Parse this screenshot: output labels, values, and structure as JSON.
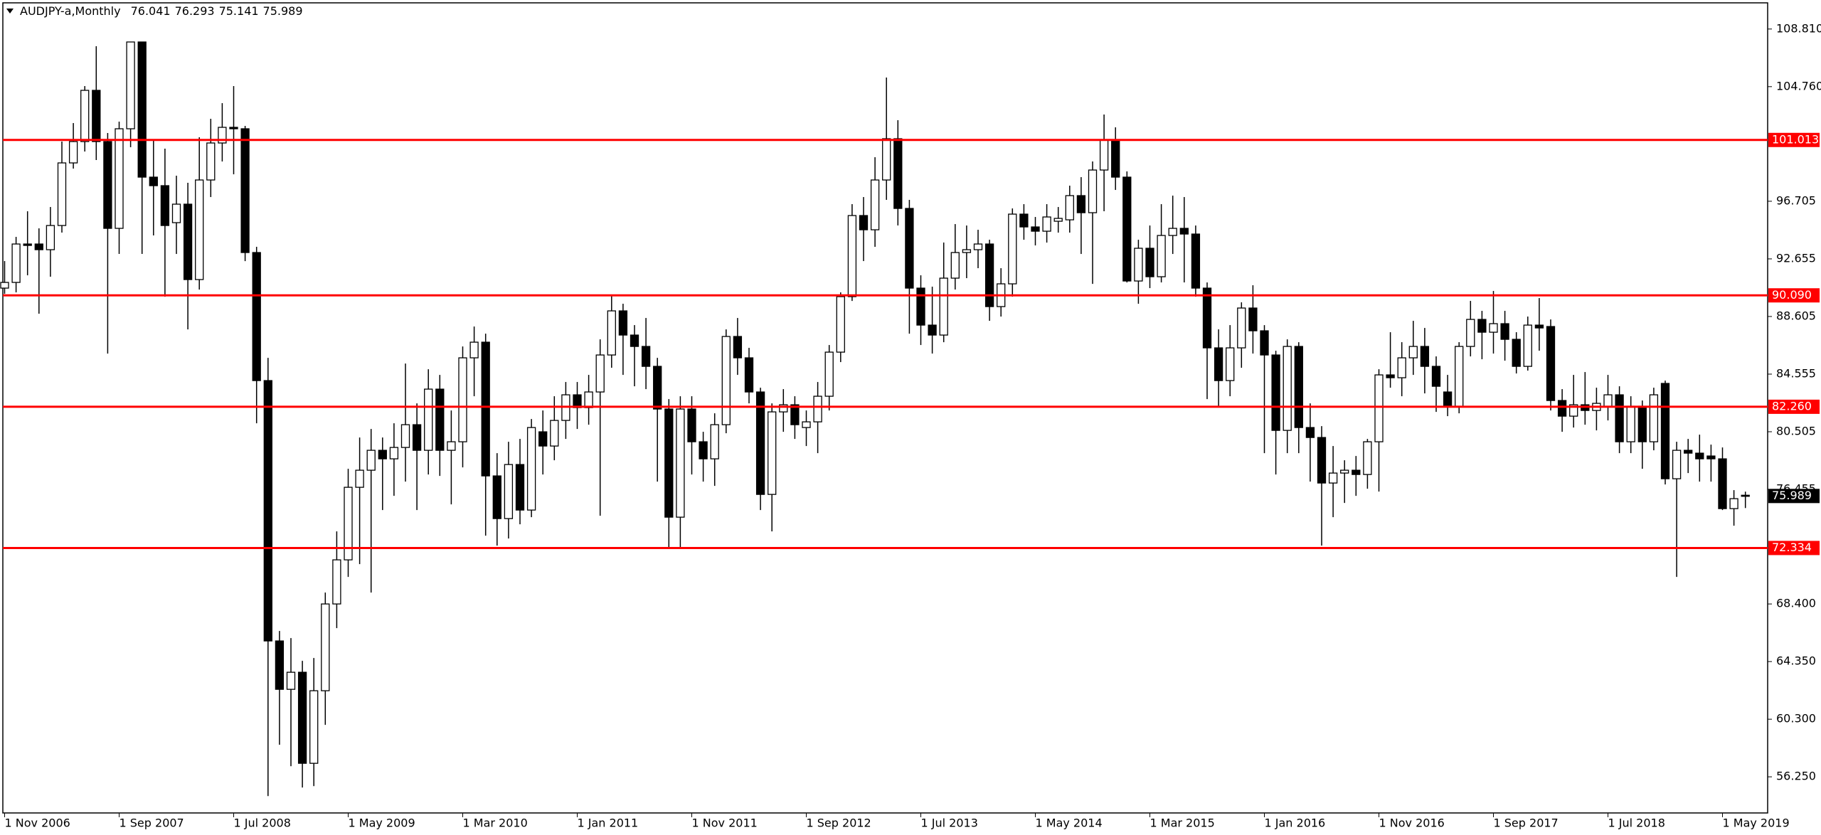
{
  "chart_data": {
    "type": "candlestick",
    "title": "AUDJPY-a,Monthly",
    "categories": [
      "1 Nov 2006",
      null,
      null,
      null,
      null,
      null,
      null,
      null,
      null,
      null,
      "1 Sep 2007",
      null,
      null,
      null,
      null,
      null,
      null,
      null,
      null,
      null,
      "1 Jul 2008",
      null,
      null,
      null,
      null,
      null,
      null,
      null,
      null,
      null,
      "1 May 2009",
      null,
      null,
      null,
      null,
      null,
      null,
      null,
      null,
      null,
      "1 Mar 2010",
      null,
      null,
      null,
      null,
      null,
      null,
      null,
      null,
      null,
      "1 Jan 2011",
      null,
      null,
      null,
      null,
      null,
      null,
      null,
      null,
      null,
      "1 Nov 2011",
      null,
      null,
      null,
      null,
      null,
      null,
      null,
      null,
      null,
      "1 Sep 2012",
      null,
      null,
      null,
      null,
      null,
      null,
      null,
      null,
      null,
      "1 Jul 2013",
      null,
      null,
      null,
      null,
      null,
      null,
      null,
      null,
      null,
      "1 May 2014",
      null,
      null,
      null,
      null,
      null,
      null,
      null,
      null,
      null,
      "1 Mar 2015",
      null,
      null,
      null,
      null,
      null,
      null,
      null,
      null,
      null,
      "1 Jan 2016",
      null,
      null,
      null,
      null,
      null,
      null,
      null,
      null,
      null,
      "1 Nov 2016",
      null,
      null,
      null,
      null,
      null,
      null,
      null,
      null,
      null,
      "1 Sep 2017",
      null,
      null,
      null,
      null,
      null,
      null,
      null,
      null,
      null,
      "1 Jul 2018",
      null,
      null,
      null,
      null,
      null,
      null,
      null,
      null,
      null,
      "1 May 2019",
      null,
      null
    ],
    "open": [
      90.6,
      91.0,
      93.7,
      93.7,
      93.3,
      95.0,
      99.4,
      100.9,
      104.5,
      100.9,
      94.8,
      101.8,
      107.9,
      98.4,
      97.8,
      95.2,
      96.5,
      91.2,
      98.2,
      100.8,
      101.9,
      101.8,
      93.1,
      84.1,
      65.8,
      62.4,
      63.6,
      57.2,
      62.3,
      68.4,
      71.5,
      76.6,
      77.8,
      79.2,
      78.6,
      79.4,
      81.0,
      79.2,
      83.5,
      79.2,
      79.8,
      85.7,
      86.8,
      77.4,
      74.4,
      78.2,
      75.0,
      80.5,
      79.5,
      81.3,
      83.1,
      82.2,
      83.3,
      85.9,
      89.0,
      87.3,
      86.5,
      85.1,
      82.1,
      74.5,
      82.1,
      79.8,
      78.6,
      81.0,
      87.2,
      85.7,
      83.3,
      76.1,
      81.9,
      82.4,
      80.8,
      81.2,
      83.0,
      86.1,
      90.0,
      95.7,
      94.7,
      98.2,
      101.1,
      96.2,
      90.6,
      88.0,
      87.3,
      91.3,
      93.1,
      93.3,
      93.7,
      89.3,
      90.9,
      95.8,
      94.9,
      94.6,
      95.3,
      95.4,
      97.1,
      95.9,
      98.9,
      101.0,
      98.4,
      91.1,
      93.4,
      91.4,
      94.3,
      94.8,
      94.4,
      90.6,
      86.4,
      84.1,
      86.4,
      89.2,
      87.6,
      85.9,
      80.6,
      86.5,
      80.8,
      80.1,
      76.9,
      77.6,
      77.8,
      77.5,
      79.8,
      84.5,
      84.3,
      85.7,
      86.5,
      85.1,
      83.3,
      82.3,
      86.5,
      88.4,
      87.5,
      88.1,
      87.0,
      85.1,
      88.0,
      87.9,
      82.7,
      81.6,
      82.4,
      82.0,
      82.3,
      83.1,
      79.8,
      82.3,
      79.8,
      83.9,
      77.2,
      79.2,
      79.0,
      78.8,
      78.6,
      75.1,
      76.041
    ],
    "high": [
      92.5,
      94.2,
      96.0,
      94.8,
      96.3,
      100.9,
      102.2,
      104.8,
      107.6,
      101.5,
      102.3,
      107.9,
      107.9,
      101.0,
      100.4,
      98.5,
      98.0,
      101.2,
      102.5,
      103.6,
      104.8,
      102.0,
      93.5,
      85.7,
      66.5,
      66.0,
      64.4,
      64.6,
      69.2,
      73.5,
      77.9,
      80.1,
      80.7,
      80.1,
      81.1,
      85.3,
      82.5,
      84.9,
      84.5,
      82.0,
      86.5,
      87.9,
      87.4,
      79.0,
      79.8,
      80.0,
      81.4,
      82.0,
      83.0,
      84.0,
      84.0,
      84.5,
      87.0,
      90.1,
      89.5,
      88.0,
      88.5,
      85.7,
      82.8,
      83.0,
      83.0,
      80.5,
      81.8,
      87.7,
      88.5,
      86.4,
      83.6,
      82.5,
      83.5,
      83.0,
      82.0,
      84.0,
      86.6,
      90.3,
      96.5,
      97.0,
      99.8,
      105.4,
      102.4,
      96.8,
      91.5,
      90.7,
      93.8,
      95.1,
      95.0,
      94.7,
      94.0,
      92.0,
      96.2,
      96.5,
      95.6,
      96.5,
      96.3,
      97.8,
      98.4,
      99.5,
      102.8,
      101.9,
      98.8,
      94.0,
      95.0,
      96.5,
      97.1,
      97.0,
      95.0,
      91.0,
      87.7,
      88.0,
      89.6,
      90.8,
      88.0,
      86.2,
      87.0,
      86.8,
      82.5,
      80.9,
      79.5,
      78.5,
      78.8,
      80.0,
      84.9,
      87.5,
      86.8,
      88.3,
      87.8,
      85.8,
      84.5,
      86.8,
      89.7,
      89.0,
      90.4,
      89.0,
      87.5,
      88.6,
      89.9,
      88.4,
      83.5,
      84.5,
      84.7,
      83.6,
      84.5,
      83.7,
      83.0,
      82.7,
      83.6,
      84.1,
      79.8,
      80.0,
      80.3,
      79.6,
      79.4,
      76.4,
      76.293
    ],
    "low": [
      90.2,
      90.3,
      91.5,
      88.8,
      91.4,
      94.5,
      99.0,
      100.2,
      99.6,
      86.0,
      93.0,
      100.5,
      93.0,
      94.3,
      90.0,
      93.0,
      87.7,
      90.5,
      97.0,
      99.5,
      98.6,
      92.5,
      81.1,
      54.9,
      58.5,
      57.0,
      55.5,
      55.6,
      59.9,
      66.7,
      70.3,
      71.2,
      69.2,
      75.0,
      76.0,
      77.0,
      75.0,
      77.5,
      77.4,
      75.4,
      78.0,
      83.0,
      73.2,
      72.5,
      73.0,
      74.0,
      74.5,
      77.5,
      78.5,
      80.0,
      80.7,
      81.0,
      74.6,
      85.0,
      84.5,
      83.7,
      83.5,
      77.0,
      72.4,
      72.3,
      77.5,
      77.0,
      76.7,
      80.4,
      84.5,
      82.5,
      75.0,
      73.5,
      80.5,
      80.0,
      79.5,
      79.0,
      82.0,
      85.4,
      89.7,
      92.5,
      93.5,
      96.8,
      95.0,
      87.4,
      86.6,
      86.0,
      86.8,
      90.5,
      91.3,
      92.0,
      88.3,
      88.6,
      90.0,
      94.0,
      93.6,
      93.8,
      94.5,
      94.5,
      93.0,
      90.9,
      96.0,
      97.5,
      91.0,
      89.5,
      90.6,
      91.0,
      93.0,
      91.0,
      90.0,
      82.8,
      82.3,
      83.0,
      85.0,
      86.0,
      79.0,
      77.5,
      79.0,
      79.0,
      77.0,
      72.5,
      74.5,
      75.5,
      76.0,
      76.5,
      76.3,
      83.6,
      83.0,
      84.5,
      83.2,
      81.9,
      81.6,
      81.8,
      85.8,
      85.6,
      86.0,
      85.5,
      84.6,
      84.8,
      86.2,
      82.0,
      80.5,
      80.8,
      81.0,
      80.6,
      81.3,
      79.0,
      79.0,
      77.9,
      79.2,
      76.8,
      70.3,
      77.6,
      77.0,
      77.0,
      75.0,
      73.9,
      75.141
    ],
    "close": [
      91.0,
      93.7,
      93.6,
      93.3,
      95.0,
      99.4,
      100.9,
      104.5,
      100.9,
      94.8,
      101.8,
      107.9,
      98.4,
      97.8,
      95.0,
      96.5,
      91.2,
      98.2,
      100.8,
      101.9,
      101.8,
      93.1,
      84.1,
      65.8,
      62.4,
      63.6,
      57.2,
      62.3,
      68.4,
      71.5,
      76.6,
      77.8,
      79.2,
      78.6,
      79.4,
      81.0,
      79.2,
      83.5,
      79.2,
      79.8,
      85.7,
      86.8,
      77.4,
      74.4,
      78.2,
      75.0,
      80.8,
      79.5,
      81.3,
      83.1,
      82.2,
      83.3,
      85.9,
      89.0,
      87.3,
      86.5,
      85.1,
      82.1,
      74.5,
      82.1,
      79.8,
      78.6,
      81.0,
      87.2,
      85.7,
      83.3,
      76.1,
      81.9,
      82.4,
      81.0,
      81.2,
      83.0,
      86.1,
      90.0,
      95.7,
      94.7,
      98.2,
      101.1,
      96.2,
      90.6,
      88.0,
      87.3,
      91.3,
      93.1,
      93.3,
      93.7,
      89.3,
      90.9,
      95.8,
      94.9,
      94.6,
      95.6,
      95.5,
      97.1,
      95.9,
      98.9,
      101.0,
      98.4,
      91.1,
      93.4,
      91.4,
      94.3,
      94.8,
      94.4,
      90.6,
      86.4,
      84.1,
      86.4,
      89.2,
      87.6,
      85.9,
      80.6,
      86.5,
      80.8,
      80.1,
      76.9,
      77.6,
      77.8,
      77.5,
      79.8,
      84.5,
      84.3,
      85.7,
      86.5,
      85.1,
      83.7,
      82.3,
      86.5,
      88.4,
      87.5,
      88.1,
      87.0,
      85.1,
      88.0,
      87.8,
      82.7,
      81.6,
      82.4,
      82.0,
      82.5,
      83.1,
      79.8,
      82.3,
      79.8,
      83.1,
      77.2,
      79.2,
      79.0,
      78.6,
      78.6,
      75.1,
      75.8,
      75.989
    ],
    "up_color": "#ffffff",
    "down_color": "#000000",
    "ylim": [
      53.71,
      110.85
    ],
    "yticks": [
      {
        "value": 108.81,
        "label": "108.810"
      },
      {
        "value": 104.76,
        "label": "104.760"
      },
      96.705,
      92.655,
      88.605,
      84.555,
      80.505,
      76.455,
      {
        "value": 68.4,
        "label": "68.400"
      },
      {
        "value": 64.35,
        "label": "64.350"
      },
      {
        "value": 60.3,
        "label": "60.300"
      },
      {
        "value": 56.25,
        "label": "56.250"
      }
    ],
    "hlines": {
      "color": "#ff0000",
      "values": [
        101.013,
        {
          "value": 90.09,
          "label": "90.090"
        },
        {
          "value": 82.26,
          "label": "82.260"
        },
        72.334
      ]
    }
  }
}
